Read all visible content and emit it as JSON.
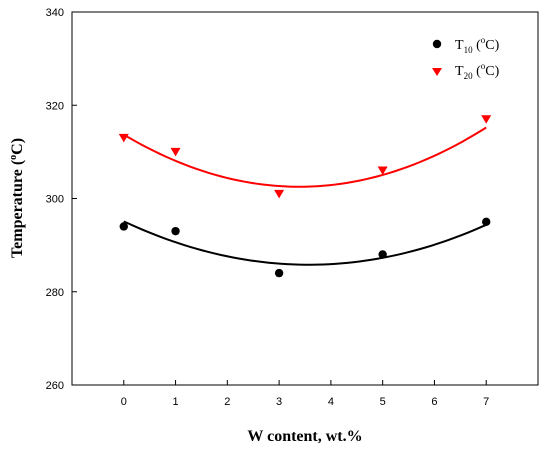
{
  "chart_data": {
    "type": "scatter",
    "xlabel": "W content, wt.%",
    "ylabel": {
      "main": "Temperature (",
      "sup": "o",
      "unit": "C)"
    },
    "xlim": [
      -1,
      8
    ],
    "ylim": [
      260,
      340
    ],
    "xticks": [
      0,
      1,
      2,
      3,
      4,
      5,
      6,
      7
    ],
    "yticks": [
      260,
      280,
      300,
      320,
      340
    ],
    "grid": false,
    "legend_position": "top-right",
    "series": [
      {
        "name": {
          "main": "T",
          "sub": "10",
          "open": " (",
          "sup": "o",
          "unit": "C)"
        },
        "marker": "circle",
        "color": "#000000",
        "x": [
          0,
          1,
          3,
          5,
          7
        ],
        "y": [
          294,
          293,
          284,
          288,
          295
        ],
        "fit": {
          "type": "quadratic",
          "x_range": [
            0,
            7
          ],
          "coefficients": [
            295.1,
            -5.21,
            0.7292
          ]
        }
      },
      {
        "name": {
          "main": "T",
          "sub": "20",
          "open": " (",
          "sup": "o",
          "unit": "C)"
        },
        "marker": "triangle-down",
        "color": "#ff0000",
        "x": [
          0,
          1,
          3,
          5,
          7
        ],
        "y": [
          313,
          310,
          301,
          306,
          317
        ],
        "fit": {
          "type": "quadratic",
          "x_range": [
            0,
            7
          ],
          "coefficients": [
            313.7,
            -6.6,
            0.974
          ]
        }
      }
    ]
  }
}
